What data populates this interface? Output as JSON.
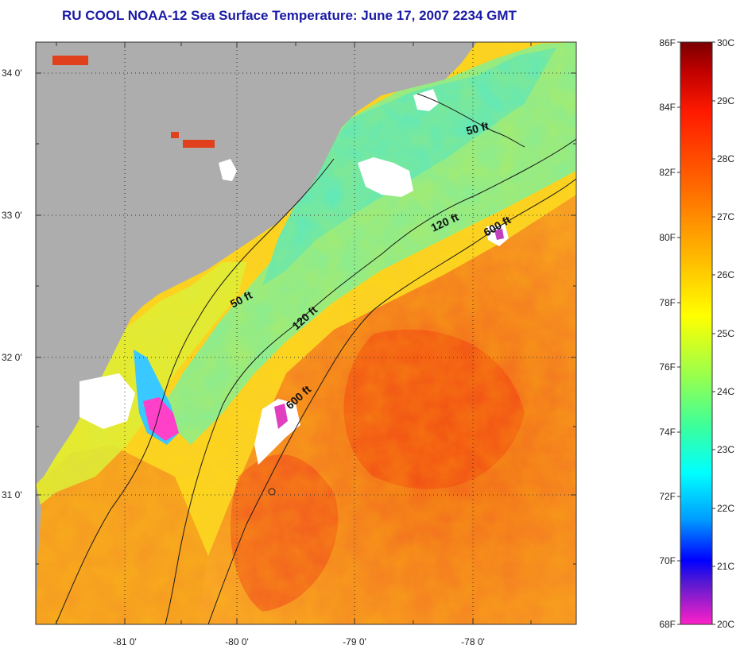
{
  "title": "RU COOL  NOAA-12  Sea Surface Temperature:  June 17, 2007 2234 GMT",
  "map": {
    "lat_ticks": [
      "34 0'",
      "33 0'",
      "32 0'",
      "31 0'"
    ],
    "lon_ticks": [
      "-81 0'",
      "-80 0'",
      "-79 0'",
      "-78 0'"
    ],
    "isobath_labels": [
      "50 ft",
      "120 ft",
      "600 ft",
      "50 ft",
      "120 ft",
      "600 ft"
    ],
    "colors": {
      "land": "#adadad",
      "cloud": "#ffffff",
      "gulf_stream": "#f26a1e",
      "shelf": "#7fe8a8"
    }
  },
  "colorbar": {
    "fahrenheit": [
      "86F",
      "84F",
      "82F",
      "80F",
      "78F",
      "76F",
      "74F",
      "72F",
      "70F",
      "68F"
    ],
    "celsius": [
      "30C",
      "29C",
      "28C",
      "27C",
      "26C",
      "25C",
      "24C",
      "23C",
      "22C",
      "21C",
      "20C"
    ]
  }
}
